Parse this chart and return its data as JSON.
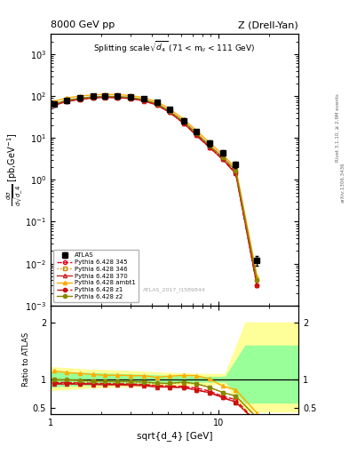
{
  "title_top_left": "8000 GeV pp",
  "title_top_right": "Z (Drell-Yan)",
  "plot_title": "Splitting scale $\\sqrt{\\overline{d_4}}$ (71 < m$_{ll}$ < 111 GeV)",
  "watermark": "ATLAS_2017_I1589844",
  "rivet_label": "Rivet 3.1.10, ≥ 2.9M events",
  "arxiv_label": "arXiv:1306.3436",
  "xlim": [
    1,
    30
  ],
  "ylim_main": [
    0.001,
    3000
  ],
  "ylim_ratio": [
    0.4,
    2.3
  ],
  "x_data": [
    1.05,
    1.25,
    1.5,
    1.8,
    2.1,
    2.5,
    3.0,
    3.6,
    4.3,
    5.1,
    6.2,
    7.4,
    8.9,
    10.6,
    12.7,
    17.0,
    25.0
  ],
  "atlas_y": [
    65,
    80,
    90,
    98,
    102,
    100,
    96,
    85,
    70,
    47,
    26,
    14,
    7.5,
    4.5,
    2.3,
    0.012,
    null
  ],
  "atlas_yerr_lo": [
    6,
    7,
    8,
    8,
    8,
    8,
    8,
    7,
    6,
    4,
    3,
    2,
    1.2,
    0.7,
    0.4,
    0.003,
    null
  ],
  "atlas_yerr_hi": [
    6,
    7,
    8,
    8,
    8,
    8,
    8,
    7,
    6,
    4,
    3,
    2,
    1.2,
    0.7,
    0.4,
    0.003,
    null
  ],
  "series": [
    {
      "label": "Pythia 6.428 345",
      "color": "#e8001a",
      "linestyle": "--",
      "marker": "o",
      "mfc": "none",
      "y": [
        62,
        76,
        85,
        92,
        95,
        93,
        89,
        78,
        63,
        42,
        23,
        12,
        6.0,
        3.2,
        1.5,
        0.003,
        null
      ]
    },
    {
      "label": "Pythia 6.428 346",
      "color": "#cc8800",
      "linestyle": ":",
      "marker": "s",
      "mfc": "none",
      "y": [
        65,
        79,
        88,
        95,
        98,
        96,
        92,
        81,
        65,
        44,
        24.5,
        13,
        6.5,
        3.5,
        1.65,
        0.004,
        null
      ]
    },
    {
      "label": "Pythia 6.428 370",
      "color": "#cc2222",
      "linestyle": "-",
      "marker": "^",
      "mfc": "none",
      "y": [
        60,
        74,
        83,
        90,
        93,
        91,
        87,
        76,
        61,
        41,
        22.5,
        11.5,
        5.8,
        3.1,
        1.4,
        0.003,
        null
      ]
    },
    {
      "label": "Pythia 6.428 ambt1",
      "color": "#ffaa00",
      "linestyle": "-",
      "marker": "^",
      "mfc": "#ffaa00",
      "y": [
        75,
        90,
        100,
        107,
        110,
        108,
        103,
        91,
        73,
        50,
        28,
        15,
        7.6,
        4.0,
        1.9,
        0.005,
        null
      ]
    },
    {
      "label": "Pythia 6.428 z1",
      "color": "#cc1111",
      "linestyle": "-.",
      "marker": "o",
      "mfc": "#cc1111",
      "y": [
        61,
        75,
        84,
        91,
        94,
        92,
        88,
        77,
        62,
        41,
        22.5,
        11.5,
        5.8,
        3.1,
        1.4,
        0.003,
        null
      ]
    },
    {
      "label": "Pythia 6.428 z2",
      "color": "#888800",
      "linestyle": "-",
      "marker": "o",
      "mfc": "#888800",
      "y": [
        65,
        80,
        89,
        96,
        99,
        97,
        93,
        82,
        66,
        44,
        25,
        13,
        6.5,
        3.5,
        1.65,
        0.004,
        null
      ]
    }
  ],
  "band_x_lo": [
    1.0,
    1.3,
    1.6,
    2.0,
    2.5,
    3.2,
    4.0,
    5.0,
    6.5,
    8.5,
    11.0,
    14.5
  ],
  "band_yellow_lo": [
    0.82,
    0.84,
    0.86,
    0.87,
    0.88,
    0.89,
    0.9,
    0.91,
    0.91,
    0.92,
    0.93,
    0.45
  ],
  "band_yellow_hi": [
    1.22,
    1.2,
    1.18,
    1.17,
    1.16,
    1.15,
    1.13,
    1.12,
    1.11,
    1.1,
    1.1,
    2.0
  ],
  "band_green_lo": [
    0.88,
    0.9,
    0.91,
    0.92,
    0.93,
    0.94,
    0.95,
    0.95,
    0.96,
    0.97,
    0.97,
    0.6
  ],
  "band_green_hi": [
    1.14,
    1.13,
    1.12,
    1.11,
    1.1,
    1.09,
    1.08,
    1.07,
    1.06,
    1.05,
    1.05,
    1.6
  ]
}
